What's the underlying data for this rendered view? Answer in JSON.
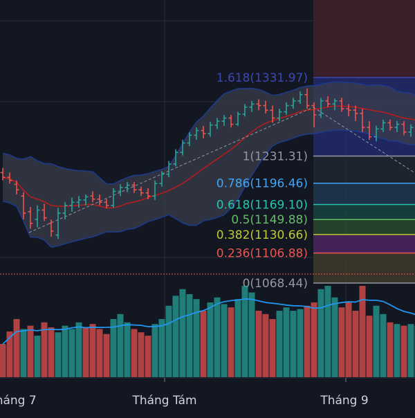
{
  "colors": {
    "background": "#131722",
    "up": "#26a69a",
    "down": "#ef5350",
    "bollinger_fill": "#3a3e4a",
    "bollinger_band": "#1e3a8a",
    "bollinger_mid": "#b71c1c",
    "volume_ma": "#2196f3",
    "grid": "#2a2e39",
    "axis_text": "#d1d4dc",
    "trend": "#9598a1"
  },
  "chart_data": {
    "type": "candlestick",
    "x_axis_labels": [
      "Tháng 7",
      "Tháng Tám",
      "Tháng 9"
    ],
    "ylim": [
      1040,
      1410
    ],
    "volume_max": 100,
    "ohlc": [
      [
        1210,
        1216,
        1200,
        1204
      ],
      [
        1204,
        1210,
        1196,
        1200
      ],
      [
        1195,
        1200,
        1182,
        1188
      ],
      [
        1180,
        1185,
        1150,
        1158
      ],
      [
        1160,
        1166,
        1138,
        1145
      ],
      [
        1150,
        1168,
        1140,
        1162
      ],
      [
        1162,
        1170,
        1148,
        1152
      ],
      [
        1145,
        1150,
        1128,
        1135
      ],
      [
        1130,
        1165,
        1125,
        1158
      ],
      [
        1158,
        1172,
        1150,
        1168
      ],
      [
        1168,
        1178,
        1160,
        1172
      ],
      [
        1172,
        1180,
        1165,
        1175
      ],
      [
        1175,
        1182,
        1168,
        1179
      ],
      [
        1180,
        1186,
        1172,
        1176
      ],
      [
        1176,
        1182,
        1168,
        1172
      ],
      [
        1172,
        1176,
        1164,
        1168
      ],
      [
        1168,
        1190,
        1165,
        1186
      ],
      [
        1186,
        1195,
        1180,
        1191
      ],
      [
        1191,
        1198,
        1185,
        1194
      ],
      [
        1194,
        1198,
        1184,
        1188
      ],
      [
        1188,
        1192,
        1180,
        1184
      ],
      [
        1184,
        1190,
        1176,
        1180
      ],
      [
        1180,
        1200,
        1175,
        1196
      ],
      [
        1196,
        1212,
        1192,
        1208
      ],
      [
        1208,
        1225,
        1204,
        1221
      ],
      [
        1221,
        1240,
        1218,
        1236
      ],
      [
        1236,
        1252,
        1232,
        1248
      ],
      [
        1248,
        1262,
        1244,
        1258
      ],
      [
        1258,
        1268,
        1252,
        1264
      ],
      [
        1264,
        1270,
        1254,
        1260
      ],
      [
        1260,
        1275,
        1256,
        1271
      ],
      [
        1271,
        1280,
        1266,
        1276
      ],
      [
        1276,
        1284,
        1270,
        1280
      ],
      [
        1280,
        1284,
        1268,
        1272
      ],
      [
        1272,
        1288,
        1270,
        1285
      ],
      [
        1285,
        1298,
        1282,
        1294
      ],
      [
        1294,
        1302,
        1288,
        1298
      ],
      [
        1298,
        1304,
        1290,
        1296
      ],
      [
        1296,
        1302,
        1286,
        1290
      ],
      [
        1290,
        1296,
        1274,
        1280
      ],
      [
        1280,
        1292,
        1276,
        1288
      ],
      [
        1288,
        1300,
        1284,
        1296
      ],
      [
        1296,
        1306,
        1292,
        1302
      ],
      [
        1302,
        1314,
        1298,
        1310
      ],
      [
        1310,
        1318,
        1292,
        1296
      ],
      [
        1296,
        1300,
        1268,
        1284
      ],
      [
        1284,
        1306,
        1280,
        1302
      ],
      [
        1302,
        1308,
        1294,
        1298
      ],
      [
        1298,
        1305,
        1290,
        1302
      ],
      [
        1302,
        1306,
        1288,
        1292
      ],
      [
        1292,
        1298,
        1282,
        1290
      ],
      [
        1290,
        1296,
        1276,
        1286
      ],
      [
        1286,
        1292,
        1262,
        1268
      ],
      [
        1268,
        1276,
        1252,
        1256
      ],
      [
        1256,
        1270,
        1250,
        1266
      ],
      [
        1266,
        1278,
        1262,
        1274
      ],
      [
        1274,
        1278,
        1264,
        1268
      ],
      [
        1268,
        1276,
        1262,
        1272
      ],
      [
        1272,
        1276,
        1258,
        1262
      ],
      [
        1262,
        1272,
        1256,
        1268
      ],
      [
        1268,
        1276,
        1262,
        1270
      ]
    ],
    "volume": [
      [
        40,
        "down"
      ],
      [
        55,
        "down"
      ],
      [
        70,
        "down"
      ],
      [
        58,
        "up"
      ],
      [
        62,
        "down"
      ],
      [
        50,
        "up"
      ],
      [
        66,
        "down"
      ],
      [
        60,
        "down"
      ],
      [
        54,
        "up"
      ],
      [
        62,
        "up"
      ],
      [
        58,
        "up"
      ],
      [
        66,
        "up"
      ],
      [
        60,
        "down"
      ],
      [
        64,
        "down"
      ],
      [
        58,
        "down"
      ],
      [
        52,
        "down"
      ],
      [
        70,
        "up"
      ],
      [
        76,
        "up"
      ],
      [
        66,
        "up"
      ],
      [
        58,
        "down"
      ],
      [
        54,
        "down"
      ],
      [
        50,
        "down"
      ],
      [
        64,
        "up"
      ],
      [
        70,
        "up"
      ],
      [
        86,
        "up"
      ],
      [
        98,
        "up"
      ],
      [
        106,
        "up"
      ],
      [
        100,
        "up"
      ],
      [
        94,
        "up"
      ],
      [
        80,
        "down"
      ],
      [
        90,
        "up"
      ],
      [
        96,
        "up"
      ],
      [
        88,
        "up"
      ],
      [
        84,
        "down"
      ],
      [
        94,
        "up"
      ],
      [
        110,
        "up"
      ],
      [
        102,
        "up"
      ],
      [
        80,
        "down"
      ],
      [
        76,
        "down"
      ],
      [
        70,
        "down"
      ],
      [
        80,
        "up"
      ],
      [
        84,
        "up"
      ],
      [
        80,
        "up"
      ],
      [
        82,
        "up"
      ],
      [
        86,
        "down"
      ],
      [
        90,
        "down"
      ],
      [
        106,
        "up"
      ],
      [
        110,
        "up"
      ],
      [
        96,
        "up"
      ],
      [
        84,
        "down"
      ],
      [
        90,
        "down"
      ],
      [
        80,
        "down"
      ],
      [
        110,
        "down"
      ],
      [
        74,
        "down"
      ],
      [
        86,
        "up"
      ],
      [
        76,
        "up"
      ],
      [
        66,
        "down"
      ],
      [
        64,
        "up"
      ],
      [
        62,
        "down"
      ],
      [
        64,
        "up"
      ],
      [
        62,
        "up"
      ]
    ],
    "fibonacci_levels": [
      {
        "label": "1.618(1331.97)",
        "price": 1331.97,
        "color": "#3a48b5",
        "fill": "#232a6b"
      },
      {
        "label": "1(1231.31)",
        "price": 1231.31,
        "color": "#9598a1",
        "fill": "#202733"
      },
      {
        "label": "0.786(1196.46)",
        "price": 1196.46,
        "color": "#42a5f5",
        "fill": "#1d3750"
      },
      {
        "label": "0.618(1169.10)",
        "price": 1169.1,
        "color": "#26c6b0",
        "fill": "#184440"
      },
      {
        "label": "0.5(1149.88)",
        "price": 1149.88,
        "color": "#66bb6a",
        "fill": "#2a4a2d"
      },
      {
        "label": "0.382(1130.66)",
        "price": 1130.66,
        "color": "#c0ca33",
        "fill": "#4b2560"
      },
      {
        "label": "0.236(1106.88)",
        "price": 1106.88,
        "color": "#ef5350",
        "fill": "#3f3a2a"
      },
      {
        "label": "0(1068.44)",
        "price": 1068.44,
        "color": "#9598a1",
        "fill": "#3e1f24"
      }
    ]
  }
}
